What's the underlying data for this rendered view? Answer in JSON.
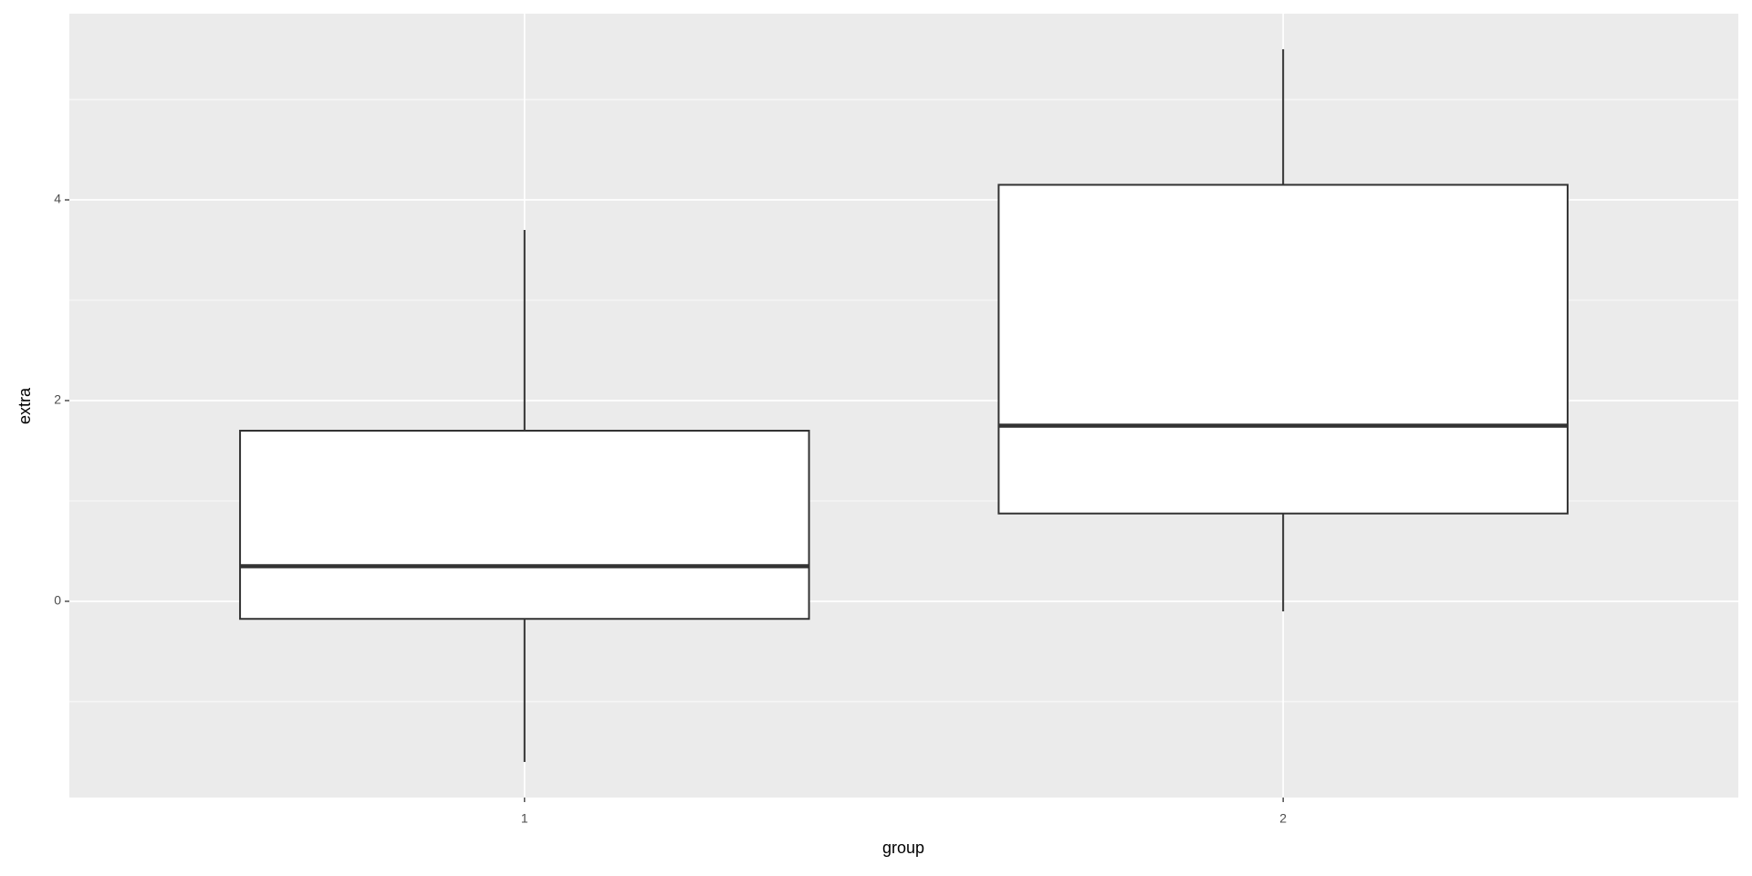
{
  "chart_data": {
    "type": "boxplot",
    "x_label": "group",
    "y_label": "extra",
    "categories": [
      "1",
      "2"
    ],
    "min": [
      -1.6,
      -0.1
    ],
    "q1": [
      -0.175,
      0.875
    ],
    "median": [
      0.35,
      1.75
    ],
    "q3": [
      1.7,
      4.15
    ],
    "max": [
      3.7,
      5.5
    ],
    "ylim": [
      -1.955,
      5.855
    ],
    "yticks": [
      0,
      2,
      4
    ],
    "minor_yticks": [
      -1,
      1,
      3,
      5
    ],
    "grid": true,
    "color": "#ffffff"
  }
}
